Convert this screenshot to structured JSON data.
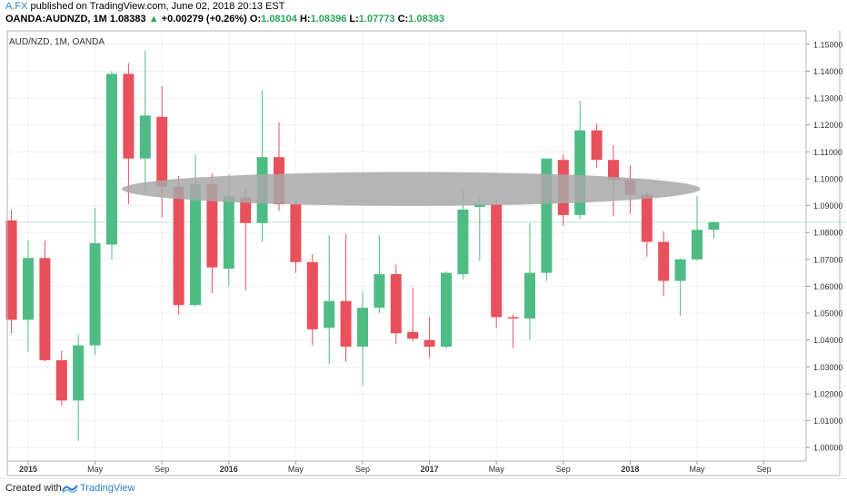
{
  "header": {
    "author": "A.FX",
    "published_text": " published on TradingView.com, June 02, 2018 20:13 EST",
    "symbol": "OANDA:AUDNZD, 1M",
    "last": " 1.08383",
    "arrow": "▲",
    "change": " +0.00279 (+0.26%)",
    "o_label": " O:",
    "o_value": "1.08104",
    "h_label": " H:",
    "h_value": "1.08396",
    "l_label": " L:",
    "l_value": "1.07773",
    "c_label": " C:",
    "c_value": "1.08383"
  },
  "footer": {
    "created_with": "Created with",
    "brand": "TradingView"
  },
  "colors": {
    "up": "#4fbc85",
    "down": "#e8505b",
    "grid": "#ecf3f1",
    "last_price_line": "#b9e6d2",
    "ellipse": "#a8a8a8"
  },
  "chart_data": {
    "type": "candlestick",
    "title": "AUD/NZD, 1M, OANDA",
    "price_axis": {
      "min": 0.995,
      "max": 1.155,
      "ticks": [
        "1.15000",
        "1.14000",
        "1.13000",
        "1.12000",
        "1.11000",
        "1.10000",
        "1.09000",
        "1.08000",
        "1.07000",
        "1.06000",
        "1.05000",
        "1.04000",
        "1.03000",
        "1.02000",
        "1.01000",
        "1.00000"
      ]
    },
    "time_axis": {
      "labels": [
        {
          "text": "2015",
          "month_index": 0,
          "bold": true
        },
        {
          "text": "May",
          "month_index": 4,
          "bold": false
        },
        {
          "text": "Sep",
          "month_index": 8,
          "bold": false
        },
        {
          "text": "2016",
          "month_index": 12,
          "bold": true
        },
        {
          "text": "May",
          "month_index": 16,
          "bold": false
        },
        {
          "text": "Sep",
          "month_index": 20,
          "bold": false
        },
        {
          "text": "2017",
          "month_index": 24,
          "bold": true
        },
        {
          "text": "May",
          "month_index": 28,
          "bold": false
        },
        {
          "text": "Sep",
          "month_index": 32,
          "bold": false
        },
        {
          "text": "2018",
          "month_index": 36,
          "bold": true
        },
        {
          "text": "May",
          "month_index": 40,
          "bold": false
        },
        {
          "text": "Sep",
          "month_index": 44,
          "bold": false
        }
      ]
    },
    "last_price": 1.08383,
    "candles": [
      {
        "month": "2014-12",
        "open": 1.0845,
        "high": 1.0885,
        "low": 1.0425,
        "close": 1.0475
      },
      {
        "month": "2015-01",
        "open": 1.0475,
        "high": 1.077,
        "low": 1.0355,
        "close": 1.0705
      },
      {
        "month": "2015-02",
        "open": 1.0705,
        "high": 1.077,
        "low": 1.032,
        "close": 1.0325
      },
      {
        "month": "2015-03",
        "open": 1.0325,
        "high": 1.036,
        "low": 1.0155,
        "close": 1.0175
      },
      {
        "month": "2015-04",
        "open": 1.0175,
        "high": 1.042,
        "low": 1.0025,
        "close": 1.038
      },
      {
        "month": "2015-05",
        "open": 1.038,
        "high": 1.089,
        "low": 1.0345,
        "close": 1.076
      },
      {
        "month": "2015-06",
        "open": 1.0755,
        "high": 1.14,
        "low": 1.07,
        "close": 1.139
      },
      {
        "month": "2015-07",
        "open": 1.139,
        "high": 1.143,
        "low": 1.0905,
        "close": 1.1075
      },
      {
        "month": "2015-08",
        "open": 1.1075,
        "high": 1.1475,
        "low": 1.094,
        "close": 1.1235
      },
      {
        "month": "2015-09",
        "open": 1.123,
        "high": 1.1345,
        "low": 1.0855,
        "close": 1.097
      },
      {
        "month": "2015-10",
        "open": 1.097,
        "high": 1.101,
        "low": 1.0495,
        "close": 1.053
      },
      {
        "month": "2015-11",
        "open": 1.053,
        "high": 1.109,
        "low": 1.0525,
        "close": 1.098
      },
      {
        "month": "2015-12",
        "open": 1.098,
        "high": 1.102,
        "low": 1.0575,
        "close": 1.067
      },
      {
        "month": "2016-01",
        "open": 1.0665,
        "high": 1.1015,
        "low": 1.06,
        "close": 1.0935
      },
      {
        "month": "2016-02",
        "open": 1.093,
        "high": 1.0965,
        "low": 1.0585,
        "close": 1.0835
      },
      {
        "month": "2016-03",
        "open": 1.0835,
        "high": 1.133,
        "low": 1.0765,
        "close": 1.108
      },
      {
        "month": "2016-04",
        "open": 1.108,
        "high": 1.121,
        "low": 1.088,
        "close": 1.0905
      },
      {
        "month": "2016-05",
        "open": 1.0905,
        "high": 1.0915,
        "low": 1.065,
        "close": 1.069
      },
      {
        "month": "2016-06",
        "open": 1.069,
        "high": 1.072,
        "low": 1.038,
        "close": 1.044
      },
      {
        "month": "2016-07",
        "open": 1.0445,
        "high": 1.079,
        "low": 1.031,
        "close": 1.0545
      },
      {
        "month": "2016-08",
        "open": 1.0545,
        "high": 1.0795,
        "low": 1.032,
        "close": 1.0375
      },
      {
        "month": "2016-09",
        "open": 1.0375,
        "high": 1.058,
        "low": 1.023,
        "close": 1.052
      },
      {
        "month": "2016-10",
        "open": 1.052,
        "high": 1.079,
        "low": 1.05,
        "close": 1.0645
      },
      {
        "month": "2016-11",
        "open": 1.0645,
        "high": 1.068,
        "low": 1.0385,
        "close": 1.0425
      },
      {
        "month": "2016-12",
        "open": 1.043,
        "high": 1.0595,
        "low": 1.0395,
        "close": 1.0405
      },
      {
        "month": "2017-01",
        "open": 1.04,
        "high": 1.0485,
        "low": 1.0335,
        "close": 1.0375
      },
      {
        "month": "2017-02",
        "open": 1.0375,
        "high": 1.0655,
        "low": 1.037,
        "close": 1.065
      },
      {
        "month": "2017-03",
        "open": 1.0645,
        "high": 1.096,
        "low": 1.0625,
        "close": 1.0885
      },
      {
        "month": "2017-04",
        "open": 1.0895,
        "high": 1.0935,
        "low": 1.0695,
        "close": 1.0905
      },
      {
        "month": "2017-05",
        "open": 1.0905,
        "high": 1.092,
        "low": 1.0445,
        "close": 1.0485
      },
      {
        "month": "2017-06",
        "open": 1.0485,
        "high": 1.0495,
        "low": 1.037,
        "close": 1.048
      },
      {
        "month": "2017-07",
        "open": 1.048,
        "high": 1.0835,
        "low": 1.04,
        "close": 1.065
      },
      {
        "month": "2017-08",
        "open": 1.065,
        "high": 1.107,
        "low": 1.062,
        "close": 1.1075
      },
      {
        "month": "2017-09",
        "open": 1.107,
        "high": 1.109,
        "low": 1.0825,
        "close": 1.0865
      },
      {
        "month": "2017-10",
        "open": 1.0865,
        "high": 1.129,
        "low": 1.085,
        "close": 1.118
      },
      {
        "month": "2017-11",
        "open": 1.118,
        "high": 1.1205,
        "low": 1.104,
        "close": 1.107
      },
      {
        "month": "2017-12",
        "open": 1.107,
        "high": 1.1125,
        "low": 1.086,
        "close": 1.0995
      },
      {
        "month": "2018-01",
        "open": 1.0995,
        "high": 1.105,
        "low": 1.087,
        "close": 1.094
      },
      {
        "month": "2018-02",
        "open": 1.094,
        "high": 1.0955,
        "low": 1.071,
        "close": 1.0765
      },
      {
        "month": "2018-03",
        "open": 1.0765,
        "high": 1.0805,
        "low": 1.0565,
        "close": 1.062
      },
      {
        "month": "2018-04",
        "open": 1.062,
        "high": 1.0705,
        "low": 1.049,
        "close": 1.07
      },
      {
        "month": "2018-05",
        "open": 1.07,
        "high": 1.0935,
        "low": 1.0695,
        "close": 1.081
      },
      {
        "month": "2018-06",
        "open": 1.081,
        "high": 1.084,
        "low": 1.0777,
        "close": 1.0838
      }
    ],
    "annotation": {
      "type": "ellipse",
      "center_month_index": 22.9,
      "center_price": 1.0962,
      "half_width_months": 17.3,
      "half_height_price": 0.0063
    }
  }
}
